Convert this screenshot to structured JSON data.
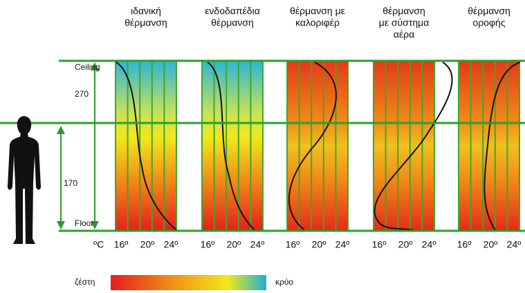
{
  "columns": [
    {
      "title": [
        "ιδανική",
        "θέρμανση"
      ]
    },
    {
      "title": [
        "ενδοδαπέδια",
        "θέρμανση"
      ]
    },
    {
      "title": [
        "θέρμανση με",
        "καλοριφέρ"
      ]
    },
    {
      "title": [
        "θέρμανση",
        "με σύστημα",
        "αέρα"
      ]
    },
    {
      "title": [
        "θέρμανση",
        "οροφής"
      ]
    }
  ],
  "scale": {
    "unit": "ºC",
    "labels": [
      "16º",
      "20º",
      "24º"
    ]
  },
  "heights": {
    "ceiling": "Ceiling",
    "floor": "Floor",
    "room": "270",
    "person": "170"
  },
  "legend": {
    "warm": "ζέστη",
    "cold": "κρύο"
  }
}
